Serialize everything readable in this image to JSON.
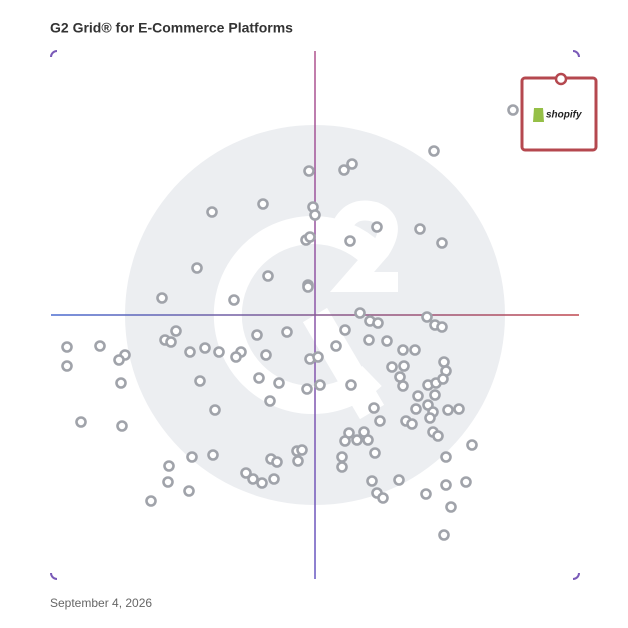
{
  "chart_data": {
    "type": "scatter",
    "title": "G2 Grid® for E-Commerce Platforms",
    "date": "September 4, 2026",
    "xlim": [
      0,
      528
    ],
    "ylim": [
      0,
      528
    ],
    "color": "#a0a3aa",
    "x": [
      383,
      301,
      293,
      258,
      161,
      212,
      262,
      264,
      326,
      369,
      391,
      299,
      255,
      259,
      146,
      217,
      257,
      257,
      111,
      183,
      309,
      319,
      327,
      376,
      384,
      391,
      294,
      236,
      206,
      125,
      114,
      120,
      16,
      49,
      74,
      68,
      139,
      154,
      168,
      190,
      185,
      215,
      285,
      318,
      336,
      352,
      364,
      259,
      267,
      16,
      70,
      149,
      208,
      228,
      219,
      256,
      269,
      300,
      341,
      353,
      393,
      395,
      349,
      352,
      377,
      385,
      392,
      367,
      384,
      164,
      30,
      71,
      323,
      329,
      355,
      361,
      365,
      377,
      382,
      379,
      397,
      408,
      382,
      387,
      421,
      298,
      294,
      306,
      313,
      317,
      324,
      141,
      162,
      246,
      251,
      247,
      220,
      226,
      291,
      291,
      395,
      118,
      117,
      138,
      100,
      195,
      202,
      211,
      223,
      321,
      326,
      332,
      348,
      375,
      395,
      415,
      400,
      393
    ],
    "y": [
      428,
      415,
      409,
      408,
      367,
      375,
      372,
      364,
      352,
      350,
      336,
      338,
      339,
      342,
      311,
      303,
      294,
      292,
      281,
      279,
      266,
      258,
      256,
      262,
      254,
      252,
      249,
      247,
      244,
      248,
      239,
      237,
      232,
      233,
      224,
      219,
      227,
      231,
      227,
      227,
      222,
      224,
      233,
      239,
      238,
      229,
      229,
      220,
      222,
      213,
      196,
      198,
      201,
      196,
      178,
      190,
      194,
      194,
      212,
      213,
      217,
      208,
      202,
      193,
      194,
      196,
      200,
      183,
      184,
      169,
      157,
      153,
      171,
      158,
      158,
      155,
      170,
      174,
      167,
      161,
      169,
      170,
      147,
      143,
      134,
      146,
      138,
      139,
      147,
      139,
      126,
      122,
      124,
      128,
      129,
      118,
      120,
      117,
      122,
      112,
      122,
      113,
      97,
      88,
      78,
      106,
      100,
      96,
      100,
      98,
      86,
      81,
      99,
      85,
      94,
      97,
      72,
      44
    ],
    "highlight": {
      "name": "shopify",
      "x": 462,
      "y": 469,
      "color": "#b5484f"
    }
  }
}
